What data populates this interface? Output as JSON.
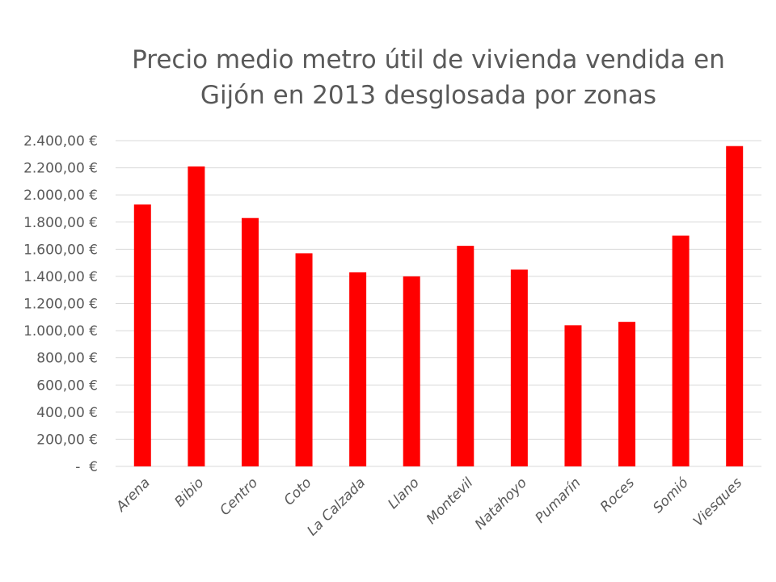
{
  "chart_data": {
    "type": "bar",
    "title_lines": [
      "Precio medio metro útil de vivienda vendida en",
      "Gijón en 2013 desglosada por zonas"
    ],
    "categories": [
      "Arena",
      "Bibio",
      "Centro",
      "Coto",
      "La Calzada",
      "Llano",
      "Montevil",
      "Natahoyo",
      "Pumarín",
      "Roces",
      "Somió",
      "Viesques"
    ],
    "values": [
      1930,
      2210,
      1830,
      1570,
      1430,
      1400,
      1625,
      1450,
      1040,
      1065,
      1700,
      2360
    ],
    "ylim": [
      0,
      2400
    ],
    "y_ticks": [
      0,
      200,
      400,
      600,
      800,
      1000,
      1200,
      1400,
      1600,
      1800,
      2000,
      2200,
      2400
    ],
    "y_tick_labels": [
      " -  €",
      "200,00 €",
      "400,00 €",
      "600,00 €",
      "800,00 €",
      "1.000,00 €",
      "1.200,00 €",
      "1.400,00 €",
      "1.600,00 €",
      "1.800,00 €",
      "2.000,00 €",
      "2.200,00 €",
      "2.400,00 €"
    ],
    "bar_color": "#ff0000",
    "grid": true,
    "legend": "none"
  }
}
